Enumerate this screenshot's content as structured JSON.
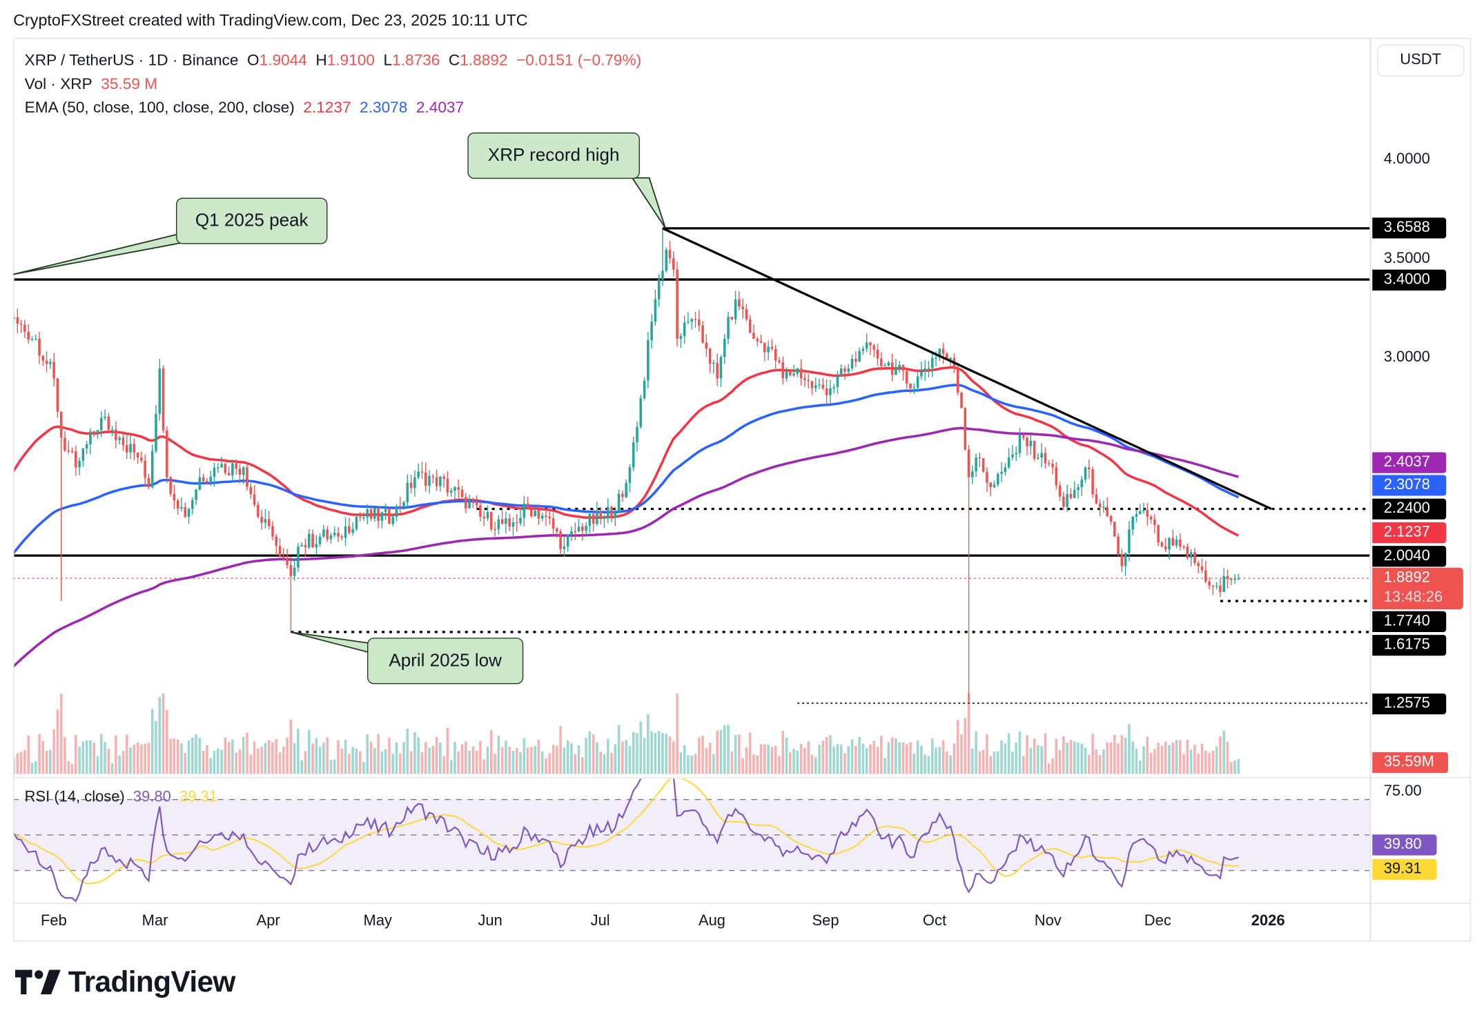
{
  "credit": "CryptoFXStreet created with TradingView.com, Dec 23, 2025 10:11 UTC",
  "legend": {
    "symbol": "XRP / TetherUS · 1D · Binance",
    "o_label": "O",
    "o": "1.9044",
    "h_label": "H",
    "h": "1.9100",
    "l_label": "L",
    "l": "1.8736",
    "c_label": "C",
    "c": "1.8892",
    "change": "−0.0151 (−0.79%)",
    "vol_label": "Vol · XRP",
    "vol": "35.59 M",
    "ema_label": "EMA (50, close, 100, close, 200, close)",
    "ema50": "2.1237",
    "ema100": "2.3078",
    "ema200": "2.4037"
  },
  "currency": "USDT",
  "rsi_legend": {
    "label": "RSI (14, close)",
    "rsi": "39.80",
    "ma": "39.31"
  },
  "logo": "TradingView",
  "colors": {
    "up": "#26a69a",
    "down": "#ef5350",
    "ema50": "#f23645",
    "ema100": "#2962ff",
    "ema200": "#9c27b0",
    "rsi": "#7e57c2",
    "rsi_ma": "#fdd835",
    "callout": "#cde8c9"
  },
  "chart_data": {
    "type": "candlestick",
    "year": 2025,
    "price_scale": "linear",
    "ylim": [
      0.95,
      4.3
    ],
    "y_ticks": [
      "4.0000",
      "3.5000",
      "3.0000"
    ],
    "x_ticks": [
      "Feb",
      "Mar",
      "Apr",
      "May",
      "Jun",
      "Jul",
      "Aug",
      "Sep",
      "Oct",
      "Nov",
      "Dec",
      "2026"
    ],
    "key_closes": [
      [
        "01-20",
        3.2
      ],
      [
        "01-27",
        3.1
      ],
      [
        "02-01",
        2.9
      ],
      [
        "02-03",
        2.6
      ],
      [
        "02-07",
        2.45
      ],
      [
        "02-14",
        2.7
      ],
      [
        "02-19",
        2.6
      ],
      [
        "02-24",
        2.5
      ],
      [
        "02-27",
        2.35
      ],
      [
        "03-02",
        2.95
      ],
      [
        "03-04",
        2.4
      ],
      [
        "03-09",
        2.2
      ],
      [
        "03-13",
        2.4
      ],
      [
        "03-18",
        2.45
      ],
      [
        "03-25",
        2.45
      ],
      [
        "03-29",
        2.2
      ],
      [
        "04-02",
        2.1
      ],
      [
        "04-04",
        2.0
      ],
      [
        "04-07",
        1.9
      ],
      [
        "04-09",
        2.05
      ],
      [
        "04-15",
        2.1
      ],
      [
        "04-20",
        2.1
      ],
      [
        "04-25",
        2.2
      ],
      [
        "05-05",
        2.2
      ],
      [
        "05-11",
        2.4
      ],
      [
        "05-16",
        2.4
      ],
      [
        "05-24",
        2.3
      ],
      [
        "05-29",
        2.2
      ],
      [
        "06-06",
        2.15
      ],
      [
        "06-11",
        2.25
      ],
      [
        "06-16",
        2.2
      ],
      [
        "06-21",
        2.05
      ],
      [
        "06-25",
        2.15
      ],
      [
        "07-02",
        2.2
      ],
      [
        "07-07",
        2.3
      ],
      [
        "07-09",
        2.45
      ],
      [
        "07-12",
        2.8
      ],
      [
        "07-16",
        3.3
      ],
      [
        "07-17",
        3.4
      ],
      [
        "07-19",
        3.55
      ],
      [
        "07-21",
        3.45
      ],
      [
        "07-22",
        3.1
      ],
      [
        "07-26",
        3.2
      ],
      [
        "07-30",
        3.05
      ],
      [
        "08-02",
        2.9
      ],
      [
        "08-04",
        3.1
      ],
      [
        "08-07",
        3.3
      ],
      [
        "08-09",
        3.25
      ],
      [
        "08-12",
        3.1
      ],
      [
        "08-17",
        3.05
      ],
      [
        "08-20",
        2.9
      ],
      [
        "08-24",
        2.95
      ],
      [
        "08-28",
        2.85
      ],
      [
        "09-02",
        2.85
      ],
      [
        "09-07",
        2.95
      ],
      [
        "09-11",
        3.05
      ],
      [
        "09-15",
        3.0
      ],
      [
        "09-20",
        2.95
      ],
      [
        "09-24",
        2.85
      ],
      [
        "09-28",
        2.95
      ],
      [
        "10-02",
        3.05
      ],
      [
        "10-06",
        2.95
      ],
      [
        "10-08",
        2.75
      ],
      [
        "10-10",
        2.4
      ],
      [
        "10-12",
        2.5
      ],
      [
        "10-16",
        2.35
      ],
      [
        "10-20",
        2.45
      ],
      [
        "10-25",
        2.6
      ],
      [
        "10-29",
        2.5
      ],
      [
        "11-02",
        2.45
      ],
      [
        "11-05",
        2.25
      ],
      [
        "11-09",
        2.35
      ],
      [
        "11-11",
        2.45
      ],
      [
        "11-15",
        2.25
      ],
      [
        "11-19",
        2.1
      ],
      [
        "11-21",
        1.95
      ],
      [
        "11-24",
        2.2
      ],
      [
        "11-28",
        2.2
      ],
      [
        "12-02",
        2.05
      ],
      [
        "12-07",
        2.05
      ],
      [
        "12-12",
        1.95
      ],
      [
        "12-16",
        1.85
      ],
      [
        "12-18",
        1.82
      ],
      [
        "12-19",
        1.9
      ],
      [
        "12-23",
        1.8892
      ]
    ],
    "extreme_wicks": [
      [
        "02-03",
        "low",
        1.774
      ],
      [
        "04-07",
        "low",
        1.6175
      ],
      [
        "07-18",
        "high",
        3.6588
      ],
      [
        "10-10",
        "low",
        1.2575
      ]
    ],
    "ema_periods": [
      50,
      100,
      200
    ],
    "levels": [
      {
        "price": 3.6588,
        "label": "3.6588",
        "style": "solid",
        "from": "07-18"
      },
      {
        "price": 3.4,
        "label": "3.4000",
        "style": "solid"
      },
      {
        "price": 2.24,
        "label": "2.2400",
        "style": "dotted",
        "from": "05-28"
      },
      {
        "price": 2.004,
        "label": "2.0040",
        "style": "solid"
      },
      {
        "price": 1.774,
        "label": "1.7740",
        "style": "dotted",
        "from": "12-18"
      },
      {
        "price": 1.6175,
        "label": "1.6175",
        "style": "dotted",
        "from": "04-07"
      },
      {
        "price": 1.2575,
        "label": "1.2575",
        "style": "thin-dotted",
        "from": "08-24"
      }
    ],
    "last_price": {
      "price": 1.8892,
      "label": "1.8892",
      "countdown": "13:48:26"
    },
    "ema_labels": {
      "ema200": "2.4037",
      "ema100": "2.3078",
      "ema50": "2.1237"
    },
    "trendline": {
      "from": [
        "07-18",
        3.6588
      ],
      "to": [
        "01-01-2026",
        2.24
      ]
    },
    "annotations": [
      {
        "text": "Q1 2025 peak",
        "points_to": [
          "01-16",
          3.4
        ]
      },
      {
        "text": "XRP record high",
        "points_to": [
          "07-18",
          3.6588
        ]
      },
      {
        "text": "April 2025 low",
        "points_to": [
          "04-07",
          1.6175
        ]
      }
    ],
    "volume_label": "35.59M",
    "rsi": {
      "period": 14,
      "tick": "75.00",
      "bands": [
        70,
        50,
        30
      ],
      "value_label": "39.80",
      "ma_label": "39.31"
    }
  }
}
